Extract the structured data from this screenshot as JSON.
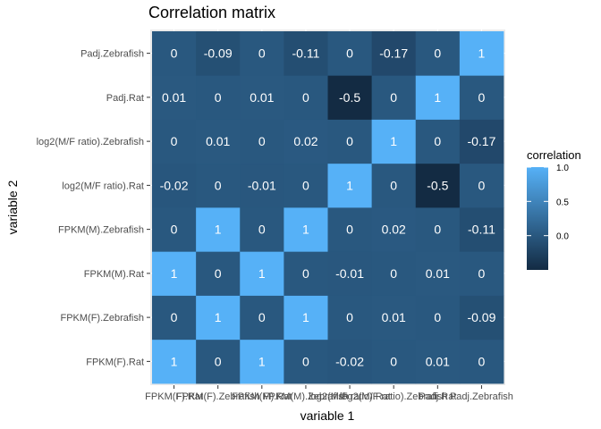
{
  "chart_data": {
    "type": "heatmap",
    "title": "Correlation matrix",
    "xlabel": "variable 1",
    "ylabel": "variable 2",
    "variables": [
      "FPKM(F).Rat",
      "FPKM(F).Zebrafish",
      "FPKM(M).Rat",
      "FPKM(M).Zebrafish",
      "log2(M/F ratio).Rat",
      "log2(M/F ratio).Zebrafish",
      "Padj.Rat",
      "Padj.Zebrafish"
    ],
    "values": [
      [
        1,
        0,
        1,
        0,
        -0.02,
        0,
        0.01,
        0
      ],
      [
        0,
        1,
        0,
        1,
        0,
        0.01,
        0,
        -0.09
      ],
      [
        1,
        0,
        1,
        0,
        -0.01,
        0,
        0.01,
        0
      ],
      [
        0,
        1,
        0,
        1,
        0,
        0.02,
        0,
        -0.11
      ],
      [
        -0.02,
        0,
        -0.01,
        0,
        1,
        0,
        -0.5,
        0
      ],
      [
        0,
        0.01,
        0,
        0.02,
        0,
        1,
        0,
        -0.17
      ],
      [
        0.01,
        0,
        0.01,
        0,
        -0.5,
        0,
        1,
        0
      ],
      [
        0,
        -0.09,
        0,
        -0.11,
        0,
        -0.17,
        0,
        1
      ]
    ],
    "legend": {
      "title": "correlation",
      "placement": "right",
      "ticks": [
        "1.0",
        "0.5",
        "0.0"
      ],
      "tick_values": [
        1.0,
        0.5,
        0.0
      ],
      "range": [
        -0.5,
        1.0
      ]
    },
    "colors": {
      "low": "#132B43",
      "high": "#56B1F7",
      "panel_background": "#EBEBEB",
      "grid": "#FFFFFF",
      "cell_text": "#FFFFFF"
    }
  }
}
